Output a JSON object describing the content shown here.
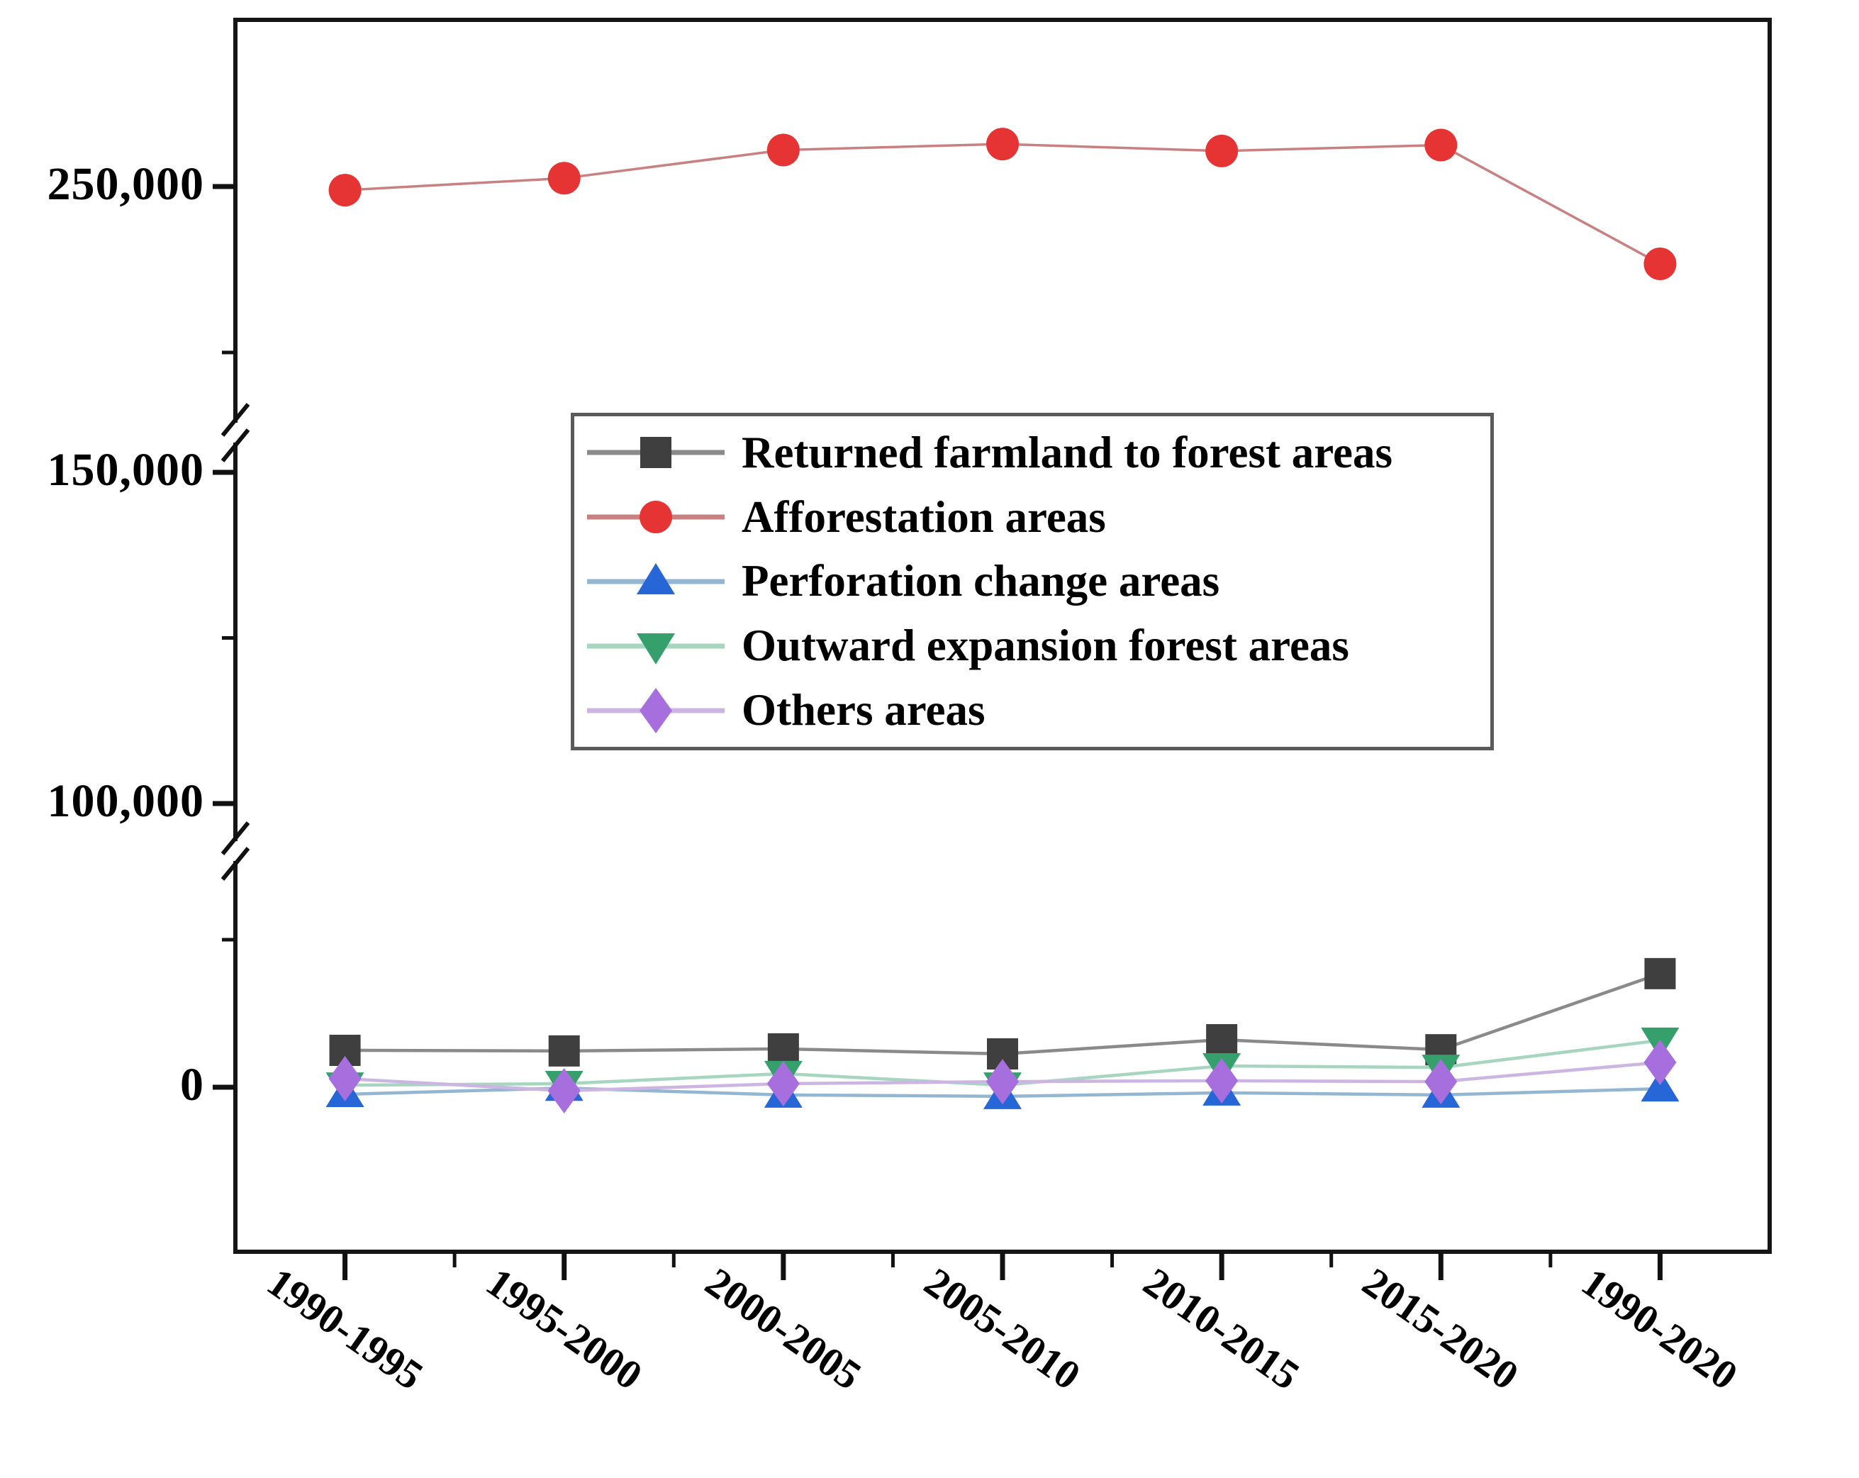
{
  "chart_data": {
    "type": "line",
    "title": "",
    "xlabel": "",
    "ylabel": "",
    "categories": [
      "1990-1995",
      "1995-2000",
      "2000-2005",
      "2005-2010",
      "2010-2015",
      "2015-2020",
      "1990-2020"
    ],
    "series": [
      {
        "name": "Returned farmland to forest areas",
        "marker": "square",
        "marker_color": "#3f3f3f",
        "line_color": "#8a8a8a",
        "values": [
          12500,
          12300,
          13000,
          11300,
          16100,
          12700,
          38500
        ]
      },
      {
        "name": "Afforestation areas",
        "marker": "circle",
        "marker_color": "#e63434",
        "line_color": "#c98080",
        "values": [
          248900,
          252500,
          261000,
          262800,
          260700,
          262500,
          226700
        ]
      },
      {
        "name": "Perforation change areas",
        "marker": "triangle-up",
        "marker_color": "#2666d6",
        "line_color": "#93b6d2",
        "values": [
          -2400,
          -300,
          -2600,
          -3100,
          -1900,
          -2600,
          -500
        ]
      },
      {
        "name": "Outward expansion forest areas",
        "marker": "triangle-down",
        "marker_color": "#35a06c",
        "line_color": "#a6d6c0",
        "values": [
          700,
          1200,
          4600,
          700,
          7200,
          6700,
          15900
        ]
      },
      {
        "name": "Others areas",
        "marker": "diamond",
        "marker_color": "#a76ede",
        "line_color": "#ccb5e2",
        "values": [
          2900,
          -1200,
          1200,
          1900,
          2200,
          1900,
          8400
        ]
      }
    ],
    "y_axis": {
      "major_ticks": [
        {
          "value": 250000,
          "label": "250,000"
        },
        {
          "value": 150000,
          "label": "150,000"
        },
        {
          "value": 100000,
          "label": "100,000"
        },
        {
          "value": 0,
          "label": "0"
        }
      ],
      "minor_ticks": [
        200000,
        125000,
        50000
      ],
      "breaks": [
        {
          "between": [
            150000,
            250000
          ]
        },
        {
          "between": [
            0,
            100000
          ]
        }
      ],
      "grid": false
    },
    "x_axis": {
      "label_rotation_deg": 35,
      "grid": false
    },
    "legend_position": "upper-center"
  }
}
